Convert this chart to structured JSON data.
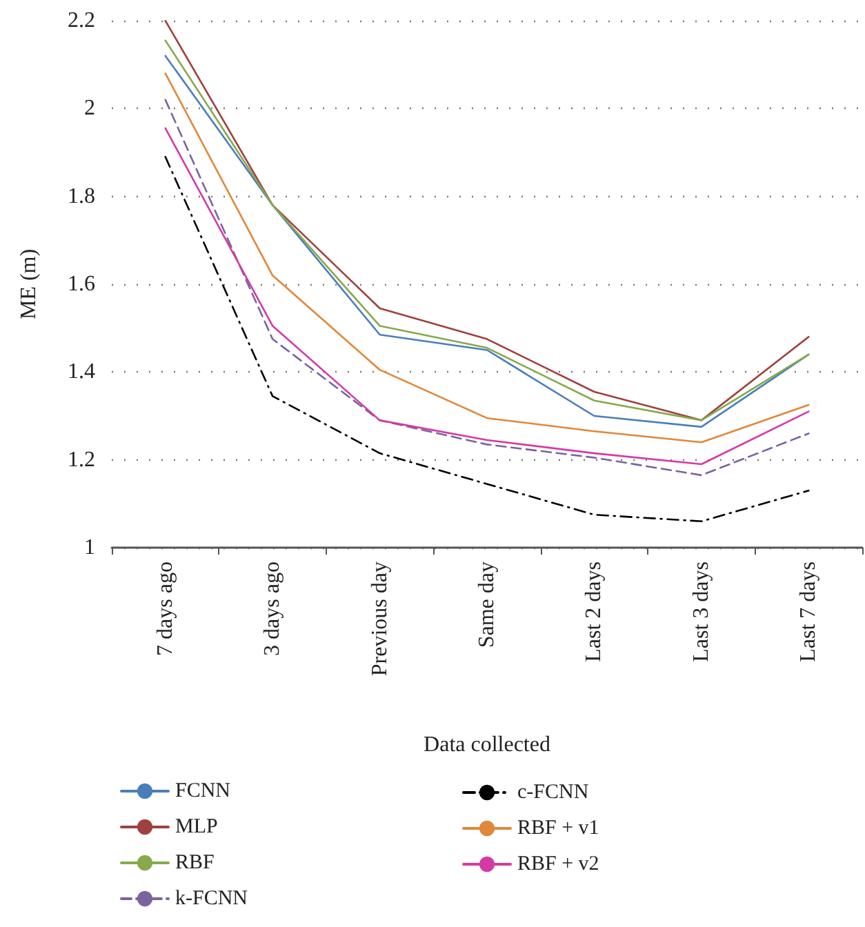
{
  "chart_data": {
    "type": "line",
    "xlabel": "Data collected",
    "ylabel": "ME (m)",
    "categories": [
      "7 days ago",
      "3 days ago",
      "Previous day",
      "Same day",
      "Last 2 days",
      "Last 3 days",
      "Last 7 days"
    ],
    "ylim": [
      1,
      2.2
    ],
    "yticks": [
      1,
      1.2,
      1.4,
      1.6,
      1.8,
      2,
      2.2
    ],
    "grid": "y",
    "legend": "bottom",
    "marker": "none",
    "series": [
      {
        "name": "FCNN",
        "color": "#4a7ebb",
        "line_style": "solid",
        "values": [
          2.12,
          1.78,
          1.485,
          1.45,
          1.3,
          1.275,
          1.44
        ]
      },
      {
        "name": "MLP",
        "color": "#a0403f",
        "line_style": "solid",
        "values": [
          2.2,
          1.78,
          1.545,
          1.475,
          1.355,
          1.29,
          1.48
        ]
      },
      {
        "name": "RBF",
        "color": "#86a94a",
        "line_style": "solid",
        "values": [
          2.155,
          1.78,
          1.505,
          1.455,
          1.335,
          1.29,
          1.44
        ]
      },
      {
        "name": "k-FCNN",
        "color": "#7b63a0",
        "line_style": "dashed",
        "values": [
          2.02,
          1.475,
          1.29,
          1.235,
          1.205,
          1.165,
          1.26
        ]
      },
      {
        "name": "c-FCNN",
        "color": "#000000",
        "line_style": "dashdot",
        "values": [
          1.89,
          1.345,
          1.215,
          1.145,
          1.075,
          1.06,
          1.13
        ]
      },
      {
        "name": "RBF + v1",
        "color": "#e0873a",
        "line_style": "solid",
        "values": [
          2.08,
          1.62,
          1.405,
          1.295,
          1.265,
          1.24,
          1.325
        ]
      },
      {
        "name": "RBF + v2",
        "color": "#d43aa5",
        "line_style": "solid",
        "values": [
          1.955,
          1.505,
          1.29,
          1.245,
          1.215,
          1.19,
          1.31
        ]
      }
    ]
  }
}
